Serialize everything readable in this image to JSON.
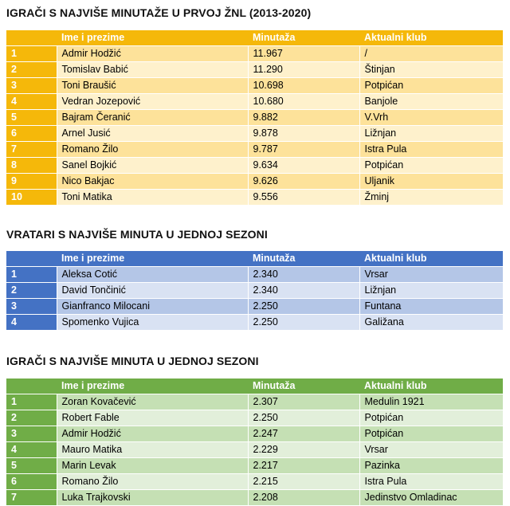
{
  "colors": {
    "orange": "#f5b80a",
    "blue": "#4472c4",
    "green": "#70ad47"
  },
  "sections": [
    {
      "title": "IGRAČI S NAJVIŠE MINUTAŽE U PRVOJ ŽNL (2013-2020)",
      "headers": [
        "",
        "Ime i prezime",
        "Minutaža",
        "Aktualni klub"
      ],
      "rows": [
        [
          "1",
          "Admir Hodžić",
          "11.967",
          "/"
        ],
        [
          "2",
          "Tomislav Babić",
          "11.290",
          "Štinjan"
        ],
        [
          "3",
          "Toni Braušić",
          "10.698",
          "Potpićan"
        ],
        [
          "4",
          "Vedran Jozepović",
          "10.680",
          "Banjole"
        ],
        [
          "5",
          "Bajram Čeranić",
          "9.882",
          "V.Vrh"
        ],
        [
          "6",
          "Arnel Jusić",
          "9.878",
          "Ližnjan"
        ],
        [
          "7",
          "Romano Žilo",
          "9.787",
          "Istra Pula"
        ],
        [
          "8",
          "Sanel Bojkić",
          "9.634",
          "Potpićan"
        ],
        [
          "9",
          "Nico Bakjac",
          "9.626",
          "Uljanik"
        ],
        [
          "10",
          "Toni Matika",
          "9.556",
          "Žminj"
        ]
      ]
    },
    {
      "title": "VRATARI S NAJVIŠE MINUTA U JEDNOJ SEZONI",
      "headers": [
        "",
        "Ime i prezime",
        "Minutaža",
        "Aktualni klub"
      ],
      "rows": [
        [
          "1",
          "Aleksa Cotić",
          "2.340",
          "Vrsar"
        ],
        [
          "2",
          "David Tončinić",
          "2.340",
          "Ližnjan"
        ],
        [
          "3",
          "Gianfranco Milocani",
          "2.250",
          "Funtana"
        ],
        [
          "4",
          "Spomenko Vujica",
          "2.250",
          "Galižana"
        ]
      ]
    },
    {
      "title": "IGRAČI S NAJVIŠE MINUTA U JEDNOJ SEZONI",
      "headers": [
        "",
        "Ime i prezime",
        "Minutaža",
        "Aktualni klub"
      ],
      "rows": [
        [
          "1",
          "Zoran Kovačević",
          "2.307",
          "Medulin 1921"
        ],
        [
          "2",
          "Robert Fable",
          "2.250",
          "Potpićan"
        ],
        [
          "3",
          "Admir Hodžić",
          "2.247",
          "Potpićan"
        ],
        [
          "4",
          "Mauro Matika",
          "2.229",
          "Vrsar"
        ],
        [
          "5",
          "Marin Levak",
          "2.217",
          "Pazinka"
        ],
        [
          "6",
          "Romano Žilo",
          "2.215",
          "Istra Pula"
        ],
        [
          "7",
          "Luka Trajkovski",
          "2.208",
          "Jedinstvo Omladinac"
        ]
      ]
    }
  ]
}
